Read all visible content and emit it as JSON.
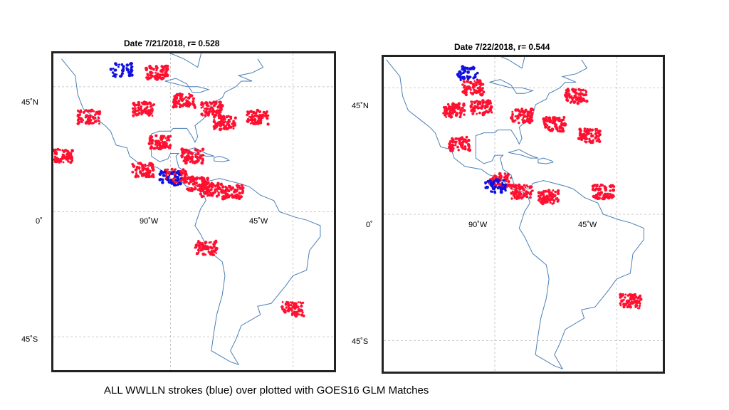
{
  "panels": [
    {
      "title": "Date 7/21/2018,  r= 0.528",
      "lat_labels": [
        "45˚N",
        "0˚",
        "45˚S"
      ],
      "lon_labels": [
        "90˚W",
        "45˚W"
      ]
    },
    {
      "title": "Date 7/22/2018,  r= 0.544",
      "lat_labels": [
        "45˚N",
        "0˚",
        "45˚S"
      ],
      "lon_labels": [
        "90˚W",
        "45˚W"
      ]
    }
  ],
  "caption": "ALL WWLLN strokes (blue) over plotted with GOES16 GLM Matches",
  "colors": {
    "wwlln": "#1010e0",
    "glm": "#ff1030",
    "coast": "#4a7fb5",
    "grid": "#bbbbbb",
    "frame": "#222222"
  },
  "storm_clusters": [
    [
      {
        "lon": -108,
        "lat": 51,
        "color": "wwlln"
      },
      {
        "lon": -95,
        "lat": 50,
        "color": "glm"
      },
      {
        "lon": -85,
        "lat": 40,
        "color": "glm"
      },
      {
        "lon": -100,
        "lat": 37,
        "color": "glm"
      },
      {
        "lon": -75,
        "lat": 37,
        "color": "glm"
      },
      {
        "lon": -70,
        "lat": 32,
        "color": "glm"
      },
      {
        "lon": -58,
        "lat": 34,
        "color": "glm"
      },
      {
        "lon": -94,
        "lat": 25,
        "color": "glm"
      },
      {
        "lon": -82,
        "lat": 20,
        "color": "glm"
      },
      {
        "lon": -100,
        "lat": 15,
        "color": "glm"
      },
      {
        "lon": -88,
        "lat": 13,
        "color": "glm"
      },
      {
        "lon": -80,
        "lat": 10,
        "color": "glm"
      },
      {
        "lon": -75,
        "lat": 8,
        "color": "glm"
      },
      {
        "lon": -67,
        "lat": 7,
        "color": "glm"
      },
      {
        "lon": -77,
        "lat": -13,
        "color": "glm"
      },
      {
        "lon": -45,
        "lat": -35,
        "color": "glm"
      },
      {
        "lon": -120,
        "lat": 34,
        "color": "glm"
      },
      {
        "lon": -130,
        "lat": 20,
        "color": "glm"
      },
      {
        "lon": -90,
        "lat": 12,
        "color": "wwlln"
      }
    ],
    [
      {
        "lon": -100,
        "lat": 50,
        "color": "wwlln"
      },
      {
        "lon": -98,
        "lat": 45,
        "color": "glm"
      },
      {
        "lon": -105,
        "lat": 37,
        "color": "glm"
      },
      {
        "lon": -95,
        "lat": 38,
        "color": "glm"
      },
      {
        "lon": -80,
        "lat": 35,
        "color": "glm"
      },
      {
        "lon": -68,
        "lat": 32,
        "color": "glm"
      },
      {
        "lon": -55,
        "lat": 28,
        "color": "glm"
      },
      {
        "lon": -60,
        "lat": 42,
        "color": "glm"
      },
      {
        "lon": -103,
        "lat": 25,
        "color": "glm"
      },
      {
        "lon": -88,
        "lat": 12,
        "color": "glm"
      },
      {
        "lon": -80,
        "lat": 8,
        "color": "glm"
      },
      {
        "lon": -70,
        "lat": 6,
        "color": "glm"
      },
      {
        "lon": -40,
        "lat": -31,
        "color": "glm"
      },
      {
        "lon": -90,
        "lat": 10,
        "color": "wwlln"
      },
      {
        "lon": -50,
        "lat": 8,
        "color": "glm"
      }
    ]
  ]
}
